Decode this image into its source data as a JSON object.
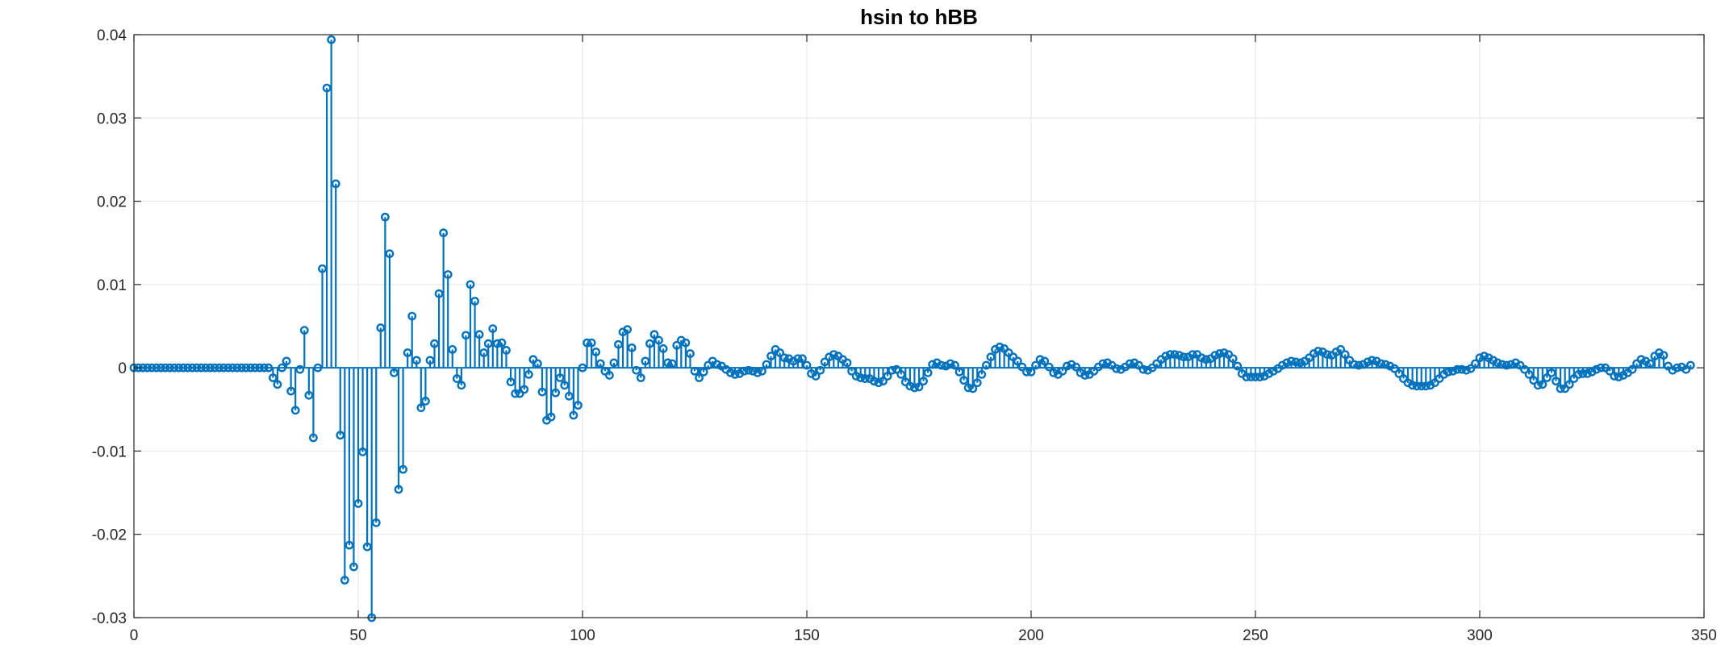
{
  "chart_data": {
    "type": "stem",
    "title": "hsin to hBB",
    "xlabel": "",
    "ylabel": "",
    "xlim": [
      0,
      350
    ],
    "ylim": [
      -0.03,
      0.04
    ],
    "xticks": [
      0,
      50,
      100,
      150,
      200,
      250,
      300,
      350
    ],
    "yticks": [
      -0.03,
      -0.02,
      -0.01,
      0,
      0.01,
      0.02,
      0.03,
      0.04
    ],
    "xtick_labels": [
      "0",
      "50",
      "100",
      "150",
      "200",
      "250",
      "300",
      "350"
    ],
    "ytick_labels": [
      "-0.03",
      "-0.02",
      "-0.01",
      "0",
      "0.01",
      "0.02",
      "0.03",
      "0.04"
    ],
    "grid": true,
    "color": "#0072BD",
    "series": [
      {
        "x_start": 0,
        "x_step": 1,
        "values": [
          0,
          0,
          0,
          0,
          0,
          0,
          0,
          0,
          0,
          0,
          0,
          0,
          0,
          0,
          0,
          0,
          0,
          0,
          0,
          0,
          0,
          0,
          0,
          0,
          0,
          0,
          0,
          0,
          0,
          0,
          0,
          -0.0012,
          -0.002,
          0,
          0.0008,
          -0.0028,
          -0.0051,
          -0.0002,
          0.0045,
          -0.0033,
          -0.0084,
          0,
          0.0119,
          0.0336,
          0.0394,
          0.0221,
          -0.0081,
          -0.0255,
          -0.0213,
          -0.0239,
          -0.0163,
          -0.0101,
          -0.0215,
          -0.03,
          -0.0186,
          0.0048,
          0.0181,
          0.0137,
          -0.0006,
          -0.0146,
          -0.0122,
          0.0018,
          0.0062,
          0.0009,
          -0.0048,
          -0.004,
          0.0009,
          0.0029,
          0.0089,
          0.0162,
          0.0112,
          0.0022,
          -0.0013,
          -0.0021,
          0.0039,
          0.01,
          0.008,
          0.004,
          0.0018,
          0.0029,
          0.0047,
          0.0029,
          0.003,
          0.0021,
          -0.0017,
          -0.0031,
          -0.0031,
          -0.0026,
          -0.0008,
          0.001,
          0.0005,
          -0.0029,
          -0.0063,
          -0.0059,
          -0.003,
          -0.0012,
          -0.0021,
          -0.0034,
          -0.0057,
          -0.0045,
          0,
          0.003,
          0.003,
          0.0019,
          0.0005,
          -0.0004,
          -0.0009,
          0.0006,
          0.0028,
          0.0043,
          0.0046,
          0.0024,
          -0.0003,
          -0.0012,
          0.0008,
          0.0029,
          0.004,
          0.0033,
          0.0023,
          0.0006,
          0.0005,
          0.0027,
          0.0033,
          0.003,
          0.0017,
          -0.0004,
          -0.0012,
          -0.0005,
          0.0003,
          0.0008,
          0.0004,
          0.0002,
          -0.0002,
          -0.0006,
          -0.0008,
          -0.0007,
          -0.0004,
          -0.0003,
          -0.0004,
          -0.0006,
          -0.0004,
          0.0004,
          0.0014,
          0.0022,
          0.0018,
          0.0012,
          0.0011,
          0.0008,
          0.0011,
          0.0011,
          0.0003,
          -0.0007,
          -0.001,
          -0.0003,
          0.0007,
          0.0013,
          0.0016,
          0.0014,
          0.001,
          0.0006,
          -0.0004,
          -0.001,
          -0.0012,
          -0.0013,
          -0.0013,
          -0.0016,
          -0.0018,
          -0.0016,
          -0.001,
          -0.0003,
          -0.0002,
          -0.0008,
          -0.0017,
          -0.0022,
          -0.0024,
          -0.0023,
          -0.0016,
          -0.0006,
          0.0004,
          0.0006,
          0.0003,
          0.0002,
          0.0005,
          0.0003,
          -0.0005,
          -0.0015,
          -0.0024,
          -0.0025,
          -0.0018,
          -0.0008,
          0.0003,
          0.0013,
          0.0022,
          0.0025,
          0.0023,
          0.0018,
          0.0013,
          0.0008,
          0.0001,
          -0.0005,
          -0.0005,
          0.0003,
          0.001,
          0.0008,
          0.0001,
          -0.0006,
          -0.0008,
          -0.0004,
          0.0002,
          0.0004,
          0.0001,
          -0.0006,
          -0.0009,
          -0.0008,
          -0.0004,
          0.0001,
          0.0005,
          0.0006,
          0.0003,
          -0.0001,
          -0.0002,
          0.0001,
          0.0005,
          0.0006,
          0.0003,
          -0.0002,
          -0.0003,
          0,
          0.0005,
          0.001,
          0.0014,
          0.0016,
          0.0016,
          0.0015,
          0.0013,
          0.0013,
          0.0016,
          0.0016,
          0.0012,
          0.001,
          0.0011,
          0.0015,
          0.0017,
          0.0018,
          0.0016,
          0.0011,
          0.0002,
          -0.0007,
          -0.0011,
          -0.0011,
          -0.0011,
          -0.0011,
          -0.001,
          -0.0007,
          -0.0004,
          -0.0001,
          0.0003,
          0.0006,
          0.0008,
          0.0007,
          0.0006,
          0.0008,
          0.0012,
          0.0017,
          0.002,
          0.0019,
          0.0016,
          0.0015,
          0.0019,
          0.0022,
          0.0016,
          0.0009,
          0.0004,
          0.0003,
          0.0004,
          0.0007,
          0.0009,
          0.0008,
          0.0005,
          0.0004,
          0.0002,
          -0.0001,
          -0.0007,
          -0.0013,
          -0.0018,
          -0.0021,
          -0.0022,
          -0.0022,
          -0.0022,
          -0.0021,
          -0.0018,
          -0.0013,
          -0.0008,
          -0.0005,
          -0.0004,
          -0.0002,
          -0.0002,
          -0.0003,
          -0.0001,
          0.0005,
          0.0012,
          0.0014,
          0.0012,
          0.0009,
          0.0006,
          0.0004,
          0.0003,
          0.0004,
          0.0006,
          0.0003,
          -0.0002,
          -0.0008,
          -0.0015,
          -0.0021,
          -0.002,
          -0.0012,
          -0.0006,
          -0.0016,
          -0.0025,
          -0.0025,
          -0.002,
          -0.0013,
          -0.0008,
          -0.0007,
          -0.0007,
          -0.0005,
          -0.0002,
          0,
          0,
          -0.0004,
          -0.001,
          -0.0011,
          -0.0009,
          -0.0006,
          -0.0002,
          0.0005,
          0.001,
          0.0008,
          0.0005,
          0.0014,
          0.0018,
          0.0015,
          0.0002,
          -0.0003,
          0,
          0.0001,
          -0.0002,
          0.0003
        ]
      }
    ]
  }
}
